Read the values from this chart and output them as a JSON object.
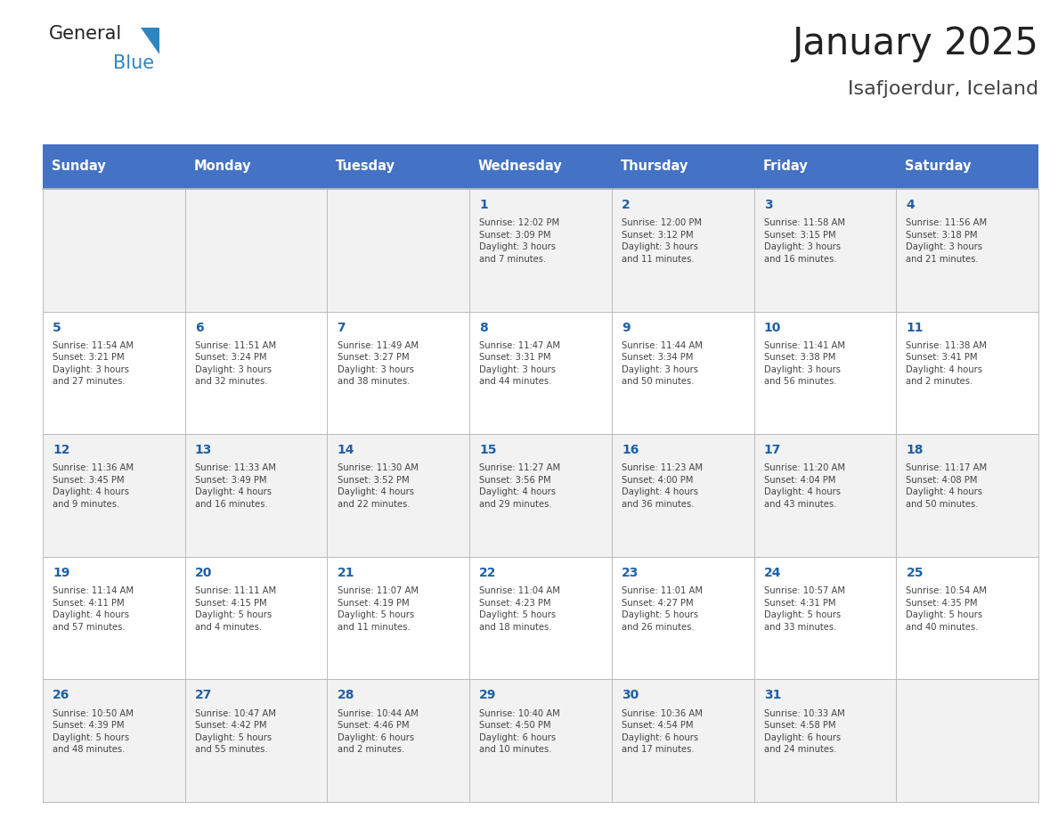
{
  "title": "January 2025",
  "subtitle": "Isafjoerdur, Iceland",
  "days_of_week": [
    "Sunday",
    "Monday",
    "Tuesday",
    "Wednesday",
    "Thursday",
    "Friday",
    "Saturday"
  ],
  "header_bg": "#4472C4",
  "header_text_color": "#FFFFFF",
  "cell_bg_odd": "#F2F2F2",
  "cell_bg_even": "#FFFFFF",
  "text_color_day": "#1F5FA6",
  "text_color_info": "#444444",
  "grid_color": "#BBBBBB",
  "days": [
    {
      "day": 1,
      "col": 3,
      "row": 0,
      "sunrise": "12:02 PM",
      "sunset": "3:09 PM",
      "daylight": "3 hours and 7 minutes."
    },
    {
      "day": 2,
      "col": 4,
      "row": 0,
      "sunrise": "12:00 PM",
      "sunset": "3:12 PM",
      "daylight": "3 hours and 11 minutes."
    },
    {
      "day": 3,
      "col": 5,
      "row": 0,
      "sunrise": "11:58 AM",
      "sunset": "3:15 PM",
      "daylight": "3 hours and 16 minutes."
    },
    {
      "day": 4,
      "col": 6,
      "row": 0,
      "sunrise": "11:56 AM",
      "sunset": "3:18 PM",
      "daylight": "3 hours and 21 minutes."
    },
    {
      "day": 5,
      "col": 0,
      "row": 1,
      "sunrise": "11:54 AM",
      "sunset": "3:21 PM",
      "daylight": "3 hours and 27 minutes."
    },
    {
      "day": 6,
      "col": 1,
      "row": 1,
      "sunrise": "11:51 AM",
      "sunset": "3:24 PM",
      "daylight": "3 hours and 32 minutes."
    },
    {
      "day": 7,
      "col": 2,
      "row": 1,
      "sunrise": "11:49 AM",
      "sunset": "3:27 PM",
      "daylight": "3 hours and 38 minutes."
    },
    {
      "day": 8,
      "col": 3,
      "row": 1,
      "sunrise": "11:47 AM",
      "sunset": "3:31 PM",
      "daylight": "3 hours and 44 minutes."
    },
    {
      "day": 9,
      "col": 4,
      "row": 1,
      "sunrise": "11:44 AM",
      "sunset": "3:34 PM",
      "daylight": "3 hours and 50 minutes."
    },
    {
      "day": 10,
      "col": 5,
      "row": 1,
      "sunrise": "11:41 AM",
      "sunset": "3:38 PM",
      "daylight": "3 hours and 56 minutes."
    },
    {
      "day": 11,
      "col": 6,
      "row": 1,
      "sunrise": "11:38 AM",
      "sunset": "3:41 PM",
      "daylight": "4 hours and 2 minutes."
    },
    {
      "day": 12,
      "col": 0,
      "row": 2,
      "sunrise": "11:36 AM",
      "sunset": "3:45 PM",
      "daylight": "4 hours and 9 minutes."
    },
    {
      "day": 13,
      "col": 1,
      "row": 2,
      "sunrise": "11:33 AM",
      "sunset": "3:49 PM",
      "daylight": "4 hours and 16 minutes."
    },
    {
      "day": 14,
      "col": 2,
      "row": 2,
      "sunrise": "11:30 AM",
      "sunset": "3:52 PM",
      "daylight": "4 hours and 22 minutes."
    },
    {
      "day": 15,
      "col": 3,
      "row": 2,
      "sunrise": "11:27 AM",
      "sunset": "3:56 PM",
      "daylight": "4 hours and 29 minutes."
    },
    {
      "day": 16,
      "col": 4,
      "row": 2,
      "sunrise": "11:23 AM",
      "sunset": "4:00 PM",
      "daylight": "4 hours and 36 minutes."
    },
    {
      "day": 17,
      "col": 5,
      "row": 2,
      "sunrise": "11:20 AM",
      "sunset": "4:04 PM",
      "daylight": "4 hours and 43 minutes."
    },
    {
      "day": 18,
      "col": 6,
      "row": 2,
      "sunrise": "11:17 AM",
      "sunset": "4:08 PM",
      "daylight": "4 hours and 50 minutes."
    },
    {
      "day": 19,
      "col": 0,
      "row": 3,
      "sunrise": "11:14 AM",
      "sunset": "4:11 PM",
      "daylight": "4 hours and 57 minutes."
    },
    {
      "day": 20,
      "col": 1,
      "row": 3,
      "sunrise": "11:11 AM",
      "sunset": "4:15 PM",
      "daylight": "5 hours and 4 minutes."
    },
    {
      "day": 21,
      "col": 2,
      "row": 3,
      "sunrise": "11:07 AM",
      "sunset": "4:19 PM",
      "daylight": "5 hours and 11 minutes."
    },
    {
      "day": 22,
      "col": 3,
      "row": 3,
      "sunrise": "11:04 AM",
      "sunset": "4:23 PM",
      "daylight": "5 hours and 18 minutes."
    },
    {
      "day": 23,
      "col": 4,
      "row": 3,
      "sunrise": "11:01 AM",
      "sunset": "4:27 PM",
      "daylight": "5 hours and 26 minutes."
    },
    {
      "day": 24,
      "col": 5,
      "row": 3,
      "sunrise": "10:57 AM",
      "sunset": "4:31 PM",
      "daylight": "5 hours and 33 minutes."
    },
    {
      "day": 25,
      "col": 6,
      "row": 3,
      "sunrise": "10:54 AM",
      "sunset": "4:35 PM",
      "daylight": "5 hours and 40 minutes."
    },
    {
      "day": 26,
      "col": 0,
      "row": 4,
      "sunrise": "10:50 AM",
      "sunset": "4:39 PM",
      "daylight": "5 hours and 48 minutes."
    },
    {
      "day": 27,
      "col": 1,
      "row": 4,
      "sunrise": "10:47 AM",
      "sunset": "4:42 PM",
      "daylight": "5 hours and 55 minutes."
    },
    {
      "day": 28,
      "col": 2,
      "row": 4,
      "sunrise": "10:44 AM",
      "sunset": "4:46 PM",
      "daylight": "6 hours and 2 minutes."
    },
    {
      "day": 29,
      "col": 3,
      "row": 4,
      "sunrise": "10:40 AM",
      "sunset": "4:50 PM",
      "daylight": "6 hours and 10 minutes."
    },
    {
      "day": 30,
      "col": 4,
      "row": 4,
      "sunrise": "10:36 AM",
      "sunset": "4:54 PM",
      "daylight": "6 hours and 17 minutes."
    },
    {
      "day": 31,
      "col": 5,
      "row": 4,
      "sunrise": "10:33 AM",
      "sunset": "4:58 PM",
      "daylight": "6 hours and 24 minutes."
    }
  ],
  "num_rows": 5,
  "num_cols": 7,
  "logo_color1": "#222222",
  "logo_color2": "#2E86C1",
  "logo_tri_color": "#2E86C1",
  "title_color": "#222222",
  "subtitle_color": "#444444"
}
